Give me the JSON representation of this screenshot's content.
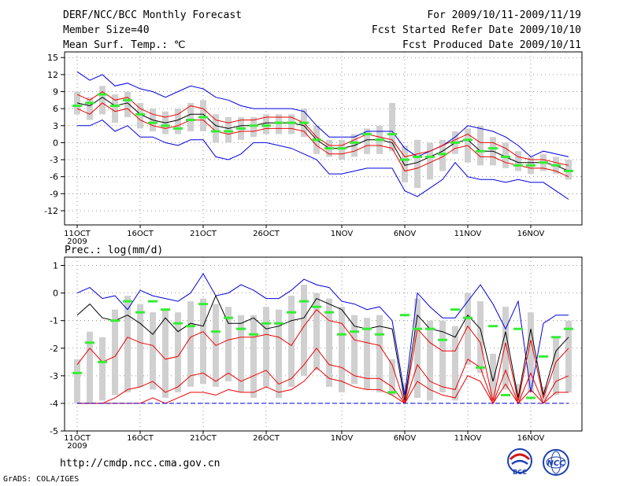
{
  "header": {
    "title": "DERF/NCC/BCC Monthly Forecast",
    "member_size": "Member Size=40",
    "variable": "Mean Surf. Temp.: ℃",
    "forecast_period": "For 2009/10/11-2009/11/19",
    "fcst_started": "Fcst Started Refer Date 2009/10/10",
    "fcst_produced": "Fcst Produced Date 2009/10/11"
  },
  "footer": {
    "url": "http://cmdp.ncc.cma.gov.cn",
    "grads": "GrADS: COLA/IGES",
    "logo_bcc": "BCC",
    "logo_ncc": "NCC"
  },
  "colors": {
    "mean": "#000000",
    "envelope": "#0000dd",
    "spread": "#ee0000",
    "box": "#d0d0d0",
    "marker": "#33ee33",
    "grid": "#777777"
  },
  "chart_data": [
    {
      "type": "line",
      "title": "Mean Surf. Temp.: ℃",
      "x": [
        "11OCT",
        "12OCT",
        "13OCT",
        "14OCT",
        "15OCT",
        "16OCT",
        "17OCT",
        "18OCT",
        "19OCT",
        "20OCT",
        "21OCT",
        "22OCT",
        "23OCT",
        "24OCT",
        "25OCT",
        "26OCT",
        "27OCT",
        "28OCT",
        "29OCT",
        "30OCT",
        "31OCT",
        "1NOV",
        "2NOV",
        "3NOV",
        "4NOV",
        "5NOV",
        "6NOV",
        "7NOV",
        "8NOV",
        "9NOV",
        "10NOV",
        "11NOV",
        "12NOV",
        "13NOV",
        "14NOV",
        "15NOV",
        "16NOV",
        "17NOV",
        "18NOV",
        "19NOV"
      ],
      "xticks": [
        "11OCT",
        "16OCT",
        "21OCT",
        "26OCT",
        "1NOV",
        "6NOV",
        "11NOV",
        "16NOV"
      ],
      "xtick_index": [
        0,
        5,
        10,
        15,
        21,
        26,
        31,
        36
      ],
      "year_label": "2009",
      "yticks": [
        15,
        12,
        9,
        6,
        3,
        0,
        -3,
        -6,
        -9,
        -12
      ],
      "ylim": [
        -14.5,
        16
      ],
      "grid": true,
      "series": [
        {
          "name": "max",
          "color_key": "envelope",
          "values": [
            12.5,
            11,
            12,
            10,
            10.5,
            9.5,
            9,
            8,
            9,
            10,
            9.5,
            8,
            7.5,
            6.5,
            6,
            6,
            6,
            6,
            5.5,
            3,
            1,
            1,
            1,
            2,
            2,
            2,
            -1,
            -2.5,
            -1.5,
            -0.5,
            1,
            3,
            2.5,
            2,
            1,
            -0.5,
            -2.5,
            -1.5,
            -2,
            -2.5
          ]
        },
        {
          "name": "upper",
          "color_key": "spread",
          "values": [
            8.5,
            7.5,
            9,
            7.5,
            8,
            6,
            5,
            4.5,
            5,
            6.5,
            6,
            4,
            3.5,
            4,
            4,
            4.5,
            4.5,
            4.5,
            3.5,
            1,
            -0.5,
            -0.5,
            0.5,
            1.5,
            1,
            0.5,
            -2.5,
            -2,
            -1.5,
            -0.5,
            0.5,
            1.5,
            0,
            0,
            -1,
            -2.5,
            -3,
            -3,
            -3.5,
            -4
          ]
        },
        {
          "name": "mean",
          "color_key": "mean",
          "values": [
            7,
            6.5,
            8,
            6.5,
            7,
            5,
            4,
            3.5,
            4,
            5,
            5,
            3,
            2.5,
            3,
            3,
            3.5,
            3.5,
            3.5,
            3,
            0.5,
            -1,
            -1,
            -0.5,
            0.5,
            0.5,
            0,
            -4,
            -3.5,
            -2.5,
            -1.5,
            0,
            0.5,
            -1.5,
            -1.5,
            -2.5,
            -3.5,
            -3.5,
            -3.5,
            -4,
            -5
          ]
        },
        {
          "name": "lower",
          "color_key": "spread",
          "values": [
            6,
            5,
            7,
            5.5,
            6,
            4,
            3,
            2.5,
            3,
            4,
            4,
            2,
            1.5,
            2,
            2,
            2.5,
            2.5,
            2.5,
            2,
            -0.5,
            -2,
            -2,
            -1.5,
            -0.5,
            -0.5,
            -1,
            -5,
            -4.5,
            -3.5,
            -2.5,
            -1,
            -0.5,
            -2.5,
            -2.5,
            -3.5,
            -4,
            -4.5,
            -4.5,
            -5,
            -6
          ]
        },
        {
          "name": "min",
          "color_key": "envelope",
          "values": [
            3,
            3,
            4,
            2,
            3,
            1,
            1,
            0,
            -0.5,
            0.5,
            0.5,
            -2.5,
            -3,
            -2,
            0,
            0,
            -0.5,
            -1,
            -2,
            -3,
            -5.5,
            -5.5,
            -5,
            -4.5,
            -4.5,
            -4.5,
            -8.5,
            -9.5,
            -8,
            -6.5,
            -3.5,
            -6,
            -6.5,
            -6.5,
            -7,
            -6.5,
            -7,
            -7,
            -8.5,
            -10
          ]
        },
        {
          "name": "ensemble_box",
          "color_key": "box",
          "box_low": [
            5,
            4,
            5,
            3.5,
            4.5,
            2.5,
            2,
            1.5,
            1.5,
            2,
            2,
            0,
            0,
            0.5,
            1,
            1.5,
            1.5,
            1.5,
            1,
            -2,
            -2.5,
            -3,
            -2.5,
            -2,
            -2,
            -1.5,
            -7,
            -8,
            -6.5,
            -5,
            -2,
            -3.5,
            -4,
            -4,
            -4.5,
            -5,
            -5.5,
            -5,
            -5.5,
            -6.5
          ],
          "box_high": [
            9,
            8,
            10,
            8.5,
            9,
            7,
            6,
            5.5,
            6,
            7,
            7.5,
            5,
            4.5,
            4.5,
            4.5,
            5,
            5,
            5,
            6,
            3,
            0.5,
            0.5,
            1.5,
            2.5,
            3,
            7,
            -0.5,
            0.5,
            0,
            0.5,
            2,
            2.5,
            3,
            1,
            0,
            -1.5,
            -2.5,
            -2,
            -2.5,
            -3
          ]
        },
        {
          "name": "observed_marker",
          "color_key": "marker",
          "values": [
            6.5,
            7,
            8.5,
            6.5,
            7.5,
            5,
            3.5,
            3,
            2.5,
            4,
            4.5,
            2,
            2,
            2.5,
            3,
            3,
            3.5,
            3.5,
            3.5,
            0.5,
            -1,
            -1,
            0,
            1.5,
            0.5,
            1.5,
            -3,
            -2.5,
            -2.5,
            -2,
            0,
            0.5,
            -1.5,
            -1,
            -2.5,
            -4,
            -4,
            -3.5,
            -4,
            -5
          ]
        }
      ]
    },
    {
      "type": "line",
      "title": "Prec.: log(mm/d)",
      "x": [
        "11OCT",
        "12OCT",
        "13OCT",
        "14OCT",
        "15OCT",
        "16OCT",
        "17OCT",
        "18OCT",
        "19OCT",
        "20OCT",
        "21OCT",
        "22OCT",
        "23OCT",
        "24OCT",
        "25OCT",
        "26OCT",
        "27OCT",
        "28OCT",
        "29OCT",
        "30OCT",
        "31OCT",
        "1NOV",
        "2NOV",
        "3NOV",
        "4NOV",
        "5NOV",
        "6NOV",
        "7NOV",
        "8NOV",
        "9NOV",
        "10NOV",
        "11NOV",
        "12NOV",
        "13NOV",
        "14NOV",
        "15NOV",
        "16NOV",
        "17NOV",
        "18NOV",
        "19NOV"
      ],
      "xticks": [
        "11OCT",
        "16OCT",
        "21OCT",
        "26OCT",
        "1NOV",
        "6NOV",
        "11NOV",
        "16NOV"
      ],
      "xtick_index": [
        0,
        5,
        10,
        15,
        21,
        26,
        31,
        36
      ],
      "year_label": "2009",
      "yticks": [
        1,
        0,
        -1,
        -2,
        -3,
        -4,
        -5
      ],
      "ylim": [
        -5,
        1.3
      ],
      "grid": true,
      "series": [
        {
          "name": "max",
          "color_key": "envelope",
          "values": [
            0,
            0.2,
            -0.2,
            -0.1,
            -0.6,
            0.1,
            -0.1,
            -0.2,
            -0.3,
            0,
            0.7,
            -0.1,
            0,
            0.3,
            0.1,
            -0.2,
            -0.2,
            0.1,
            0.5,
            0.3,
            0.2,
            -0.3,
            -0.4,
            -0.6,
            -0.5,
            -1,
            -3.7,
            0,
            -0.5,
            -0.9,
            -0.9,
            -0.3,
            0.3,
            -0.4,
            -1.3,
            -0.3,
            -3.6,
            -1.1,
            -0.8,
            -0.8
          ]
        },
        {
          "name": "mean",
          "color_key": "mean",
          "values": [
            -0.8,
            -0.4,
            -0.9,
            -1,
            -0.8,
            -1.1,
            -1.5,
            -0.9,
            -1.4,
            -1.1,
            -1.2,
            -0.1,
            -1.1,
            -1.1,
            -0.9,
            -1.3,
            -1.2,
            -1,
            -0.9,
            -0.2,
            -0.4,
            -0.6,
            -1.2,
            -1.3,
            -1.2,
            -1.3,
            -3.9,
            -0.8,
            -1.3,
            -1.4,
            -1.6,
            -0.8,
            -1.3,
            -3.2,
            -1.4,
            -3.8,
            -1.3,
            -3.7,
            -2.1,
            -1.6
          ]
        },
        {
          "name": "upper",
          "color_key": "spread",
          "values": [
            -2.6,
            -2,
            -2.5,
            -2.3,
            -1.6,
            -1.8,
            -1.9,
            -2.4,
            -2.3,
            -1.6,
            -1.4,
            -1.9,
            -1.7,
            -1.6,
            -1.6,
            -1.5,
            -1.6,
            -1.9,
            -1.2,
            -0.6,
            -1,
            -1.1,
            -1.7,
            -1.8,
            -1.9,
            -2.6,
            -4,
            -1.3,
            -1.8,
            -2.1,
            -2.1,
            -1.2,
            -1.8,
            -3.9,
            -1.8,
            -3.9,
            -1.7,
            -3.8,
            -2.5,
            -2
          ]
        },
        {
          "name": "lower",
          "color_key": "spread",
          "values": [
            -4,
            -4,
            -4,
            -3.8,
            -3.5,
            -3.4,
            -3.2,
            -3.6,
            -3.4,
            -3,
            -2.9,
            -3.2,
            -2.9,
            -3.2,
            -3,
            -2.8,
            -3.3,
            -3.1,
            -2.6,
            -2,
            -2.6,
            -2.7,
            -3,
            -3.1,
            -3.1,
            -3.4,
            -4,
            -2.6,
            -3.2,
            -3.4,
            -3.5,
            -2.4,
            -2.7,
            -4,
            -2.8,
            -4,
            -2.9,
            -4,
            -3.2,
            -3
          ]
        },
        {
          "name": "lowest",
          "color_key": "spread",
          "values": [
            -4,
            -4,
            -4,
            -4,
            -4,
            -4,
            -3.8,
            -4,
            -3.8,
            -3.6,
            -3.6,
            -3.7,
            -3.5,
            -3.6,
            -3.6,
            -3.4,
            -3.6,
            -3.5,
            -3.2,
            -2.7,
            -3.1,
            -3.2,
            -3.4,
            -3.5,
            -3.5,
            -3.7,
            -4,
            -3.2,
            -3.5,
            -3.7,
            -3.8,
            -3,
            -3.2,
            -4,
            -3.3,
            -4,
            -3.5,
            -4,
            -3.6,
            -3.6
          ]
        },
        {
          "name": "min",
          "color_key": "envelope",
          "values": [
            -4,
            -4,
            -4,
            -4,
            -4,
            -4,
            -4,
            -4,
            -4,
            -4,
            -4,
            -4,
            -4,
            -4,
            -4,
            -4,
            -4,
            -4,
            -4,
            -4,
            -4,
            -4,
            -4,
            -4,
            -4,
            -4,
            -4,
            -4,
            -4,
            -4,
            -4,
            -4,
            -4,
            -4,
            -4,
            -4,
            -4,
            -4,
            -4,
            -4
          ]
        },
        {
          "name": "ensemble_box",
          "color_key": "box",
          "box_low": [
            -4,
            -4,
            -3.9,
            -3.7,
            -3.6,
            -3.4,
            -3.5,
            -3.8,
            -3.6,
            -3.4,
            -3.3,
            -3.4,
            -3.2,
            -3.6,
            -3.8,
            -3.4,
            -3.8,
            -3.4,
            -3,
            -2.8,
            -3.4,
            -3.6,
            -3.3,
            -3.5,
            -3.6,
            -3.7,
            -3.9,
            -3.8,
            -3.9,
            -3.6,
            -3.9,
            -2.6,
            -2.9,
            -3.9,
            -3.5,
            -3.9,
            -3.6,
            -3.9,
            -3.7,
            -3.6
          ],
          "box_high": [
            -2.4,
            -1.4,
            -1.6,
            -0.6,
            -0.1,
            -0.4,
            -0.7,
            -0.6,
            -0.7,
            -0.3,
            -0.2,
            -0.4,
            -0.5,
            -0.8,
            -0.8,
            -0.5,
            -0.6,
            -0.1,
            0.3,
            0,
            -0.2,
            -0.5,
            -0.8,
            -0.9,
            -0.8,
            -2.4,
            -3.3,
            -0.2,
            -1,
            -1,
            -1.2,
            0,
            -0.3,
            -2.2,
            -0.5,
            -3.3,
            -0.7,
            -3.4,
            -1.6,
            -1
          ]
        },
        {
          "name": "observed_marker",
          "color_key": "marker",
          "values": [
            -2.9,
            -1.8,
            -2.5,
            -1,
            -0.3,
            -0.7,
            -0.3,
            -0.6,
            -1.1,
            -1.2,
            -0.4,
            -1.4,
            -0.9,
            -1.3,
            -1.5,
            -1.1,
            -1.1,
            -0.7,
            -0.3,
            -0.5,
            -0.7,
            -1.5,
            -1.4,
            -1.3,
            -1.5,
            -3.6,
            -0.8,
            -1.3,
            -1.3,
            -1.7,
            -0.6,
            -0.9,
            -2.7,
            -1.2,
            -3.7,
            -1.3,
            -3.8,
            -2.3,
            -1.6,
            -1.3
          ]
        }
      ]
    }
  ]
}
